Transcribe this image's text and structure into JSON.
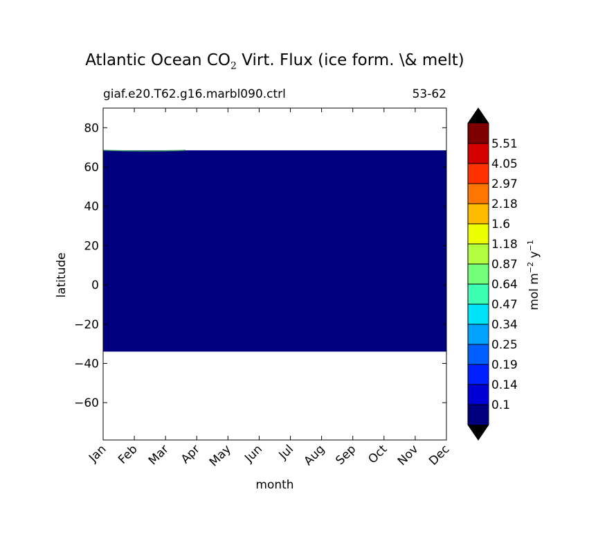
{
  "chart_data": {
    "type": "heatmap",
    "title": {
      "prefix": "Atlantic Ocean CO",
      "subscript": "2",
      "suffix": " Virt. Flux (ice form. \\& melt)"
    },
    "subtitle_left": "giaf.e20.T62.g16.marbl090.ctrl",
    "subtitle_right": "53-62",
    "xlabel": "month",
    "ylabel": "latitude",
    "x_categories": [
      "Jan",
      "Feb",
      "Mar",
      "Apr",
      "May",
      "Jun",
      "Jul",
      "Aug",
      "Sep",
      "Oct",
      "Nov",
      "Dec"
    ],
    "ylim": [
      -79,
      90
    ],
    "y_ticks": [
      80,
      60,
      40,
      20,
      0,
      -20,
      -40,
      -60
    ],
    "data_region": {
      "lat_min": -34,
      "lat_max": 68.5,
      "value_level": "below 0.1",
      "color": "#00007f",
      "note_edge_color": "#2e8b57"
    },
    "colorbar": {
      "label": "mol m^-2 y^-1",
      "label_parts": {
        "base1": "mol m",
        "exp1": "−2",
        "base2": " y",
        "exp2": "−1"
      },
      "levels": [
        "5.51",
        "4.05",
        "2.97",
        "2.18",
        "1.6",
        "1.18",
        "0.87",
        "0.64",
        "0.47",
        "0.34",
        "0.25",
        "0.19",
        "0.14",
        "0.1"
      ],
      "colors_top_to_bottom": [
        "#7f0000",
        "#d40000",
        "#ff3300",
        "#ff7700",
        "#ffbb00",
        "#eeff00",
        "#b3ff3f",
        "#74ff7a",
        "#3cffb4",
        "#00e4f7",
        "#00a2ff",
        "#0060ff",
        "#0020ff",
        "#0000d4",
        "#00007f"
      ],
      "over_color": "#000000",
      "under_color": "#000000",
      "extend": "both"
    }
  }
}
